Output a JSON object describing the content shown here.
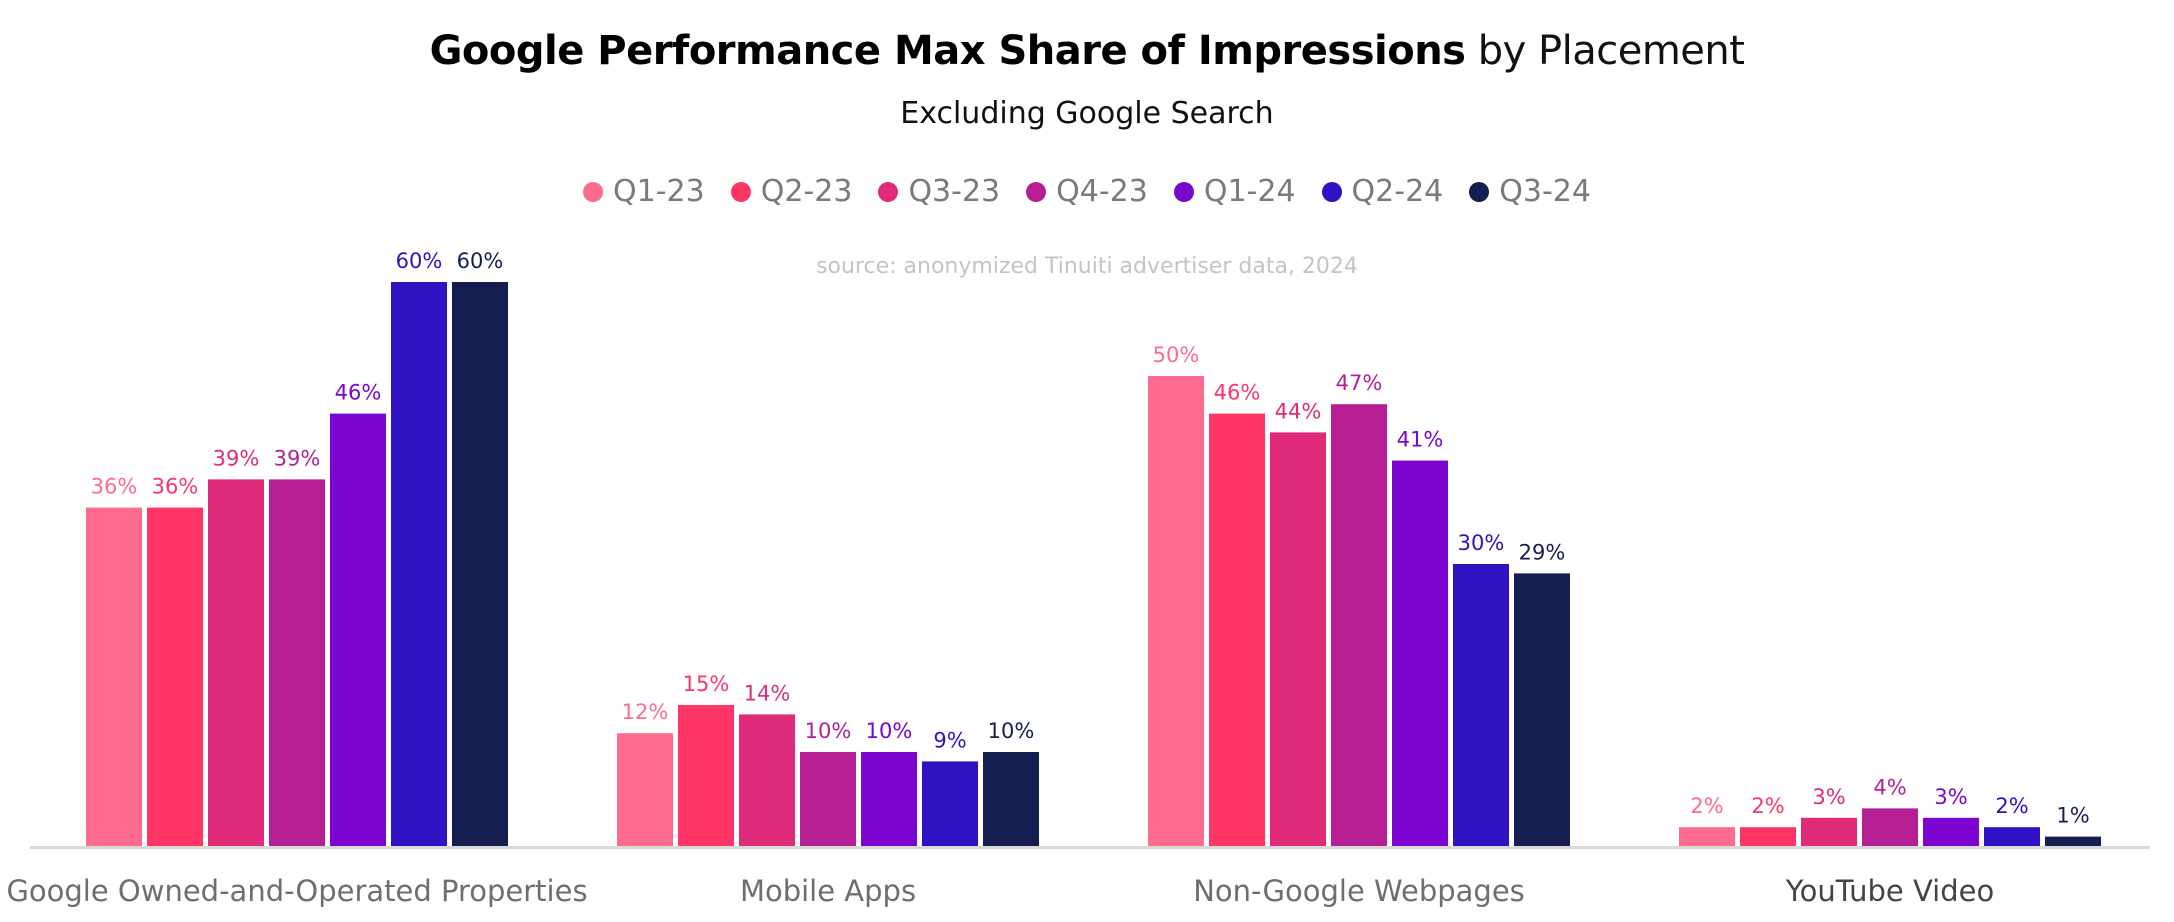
{
  "header": {
    "title_bold": "Google Performance Max Share of Impressions",
    "title_light": "by Placement",
    "subtitle": "Excluding Google Search",
    "source": "source: anonymized Tinuiti advertiser data, 2024"
  },
  "chart_data": {
    "type": "bar",
    "categories": [
      "Google Owned-and-Operated Properties",
      "Mobile Apps",
      "Non-Google Webpages",
      "YouTube Video"
    ],
    "series": [
      {
        "name": "Q1-23",
        "color": "#ff6b8f",
        "values": [
          36,
          12,
          50,
          2
        ],
        "labels": [
          "36%",
          "12%",
          "50%",
          "2%"
        ]
      },
      {
        "name": "Q2-23",
        "color": "#ff3566",
        "values": [
          36,
          15,
          46,
          2
        ],
        "labels": [
          "36%",
          "15%",
          "46%",
          "2%"
        ]
      },
      {
        "name": "Q3-23",
        "color": "#e02a7a",
        "values": [
          39,
          14,
          44,
          3
        ],
        "labels": [
          "39%",
          "14%",
          "44%",
          "3%"
        ]
      },
      {
        "name": "Q4-23",
        "color": "#b61f93",
        "values": [
          39,
          10,
          47,
          4
        ],
        "labels": [
          "39%",
          "10%",
          "47%",
          "4%"
        ]
      },
      {
        "name": "Q1-24",
        "color": "#7b06cf",
        "values": [
          46,
          10,
          41,
          3
        ],
        "labels": [
          "46%",
          "10%",
          "41%",
          "3%"
        ]
      },
      {
        "name": "Q2-24",
        "color": "#3112c2",
        "values": [
          60,
          9,
          30,
          2
        ],
        "labels": [
          "60%",
          "9%",
          "30%",
          "2%"
        ]
      },
      {
        "name": "Q3-24",
        "color": "#141e50",
        "values": [
          60,
          10,
          29,
          1
        ],
        "labels": [
          "60%",
          "10%",
          "29%",
          "1%"
        ]
      }
    ],
    "ylim": [
      0,
      60
    ],
    "grid": false,
    "legend": "top-center",
    "xlabel": "",
    "ylabel": ""
  }
}
